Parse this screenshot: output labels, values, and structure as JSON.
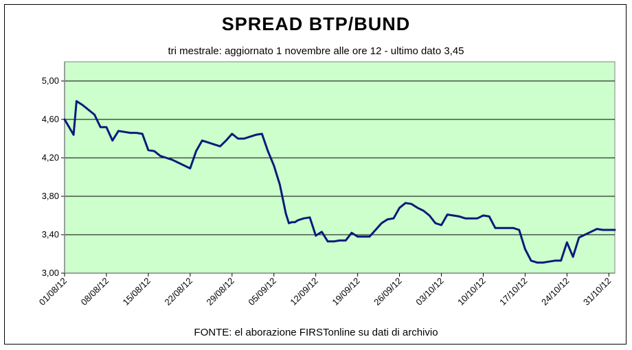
{
  "chart_data": {
    "type": "line",
    "title": "SPREAD  BTP/BUND",
    "subtitle": "tri mestrale: aggiornato 1 novembre alle ore 12 - ultimo dato 3,45",
    "source": "FONTE: el aborazione FIRSTonline su dati di archivio",
    "ylim": [
      3.0,
      5.2
    ],
    "yticks": [
      "3,00",
      "3,40",
      "3,80",
      "4,20",
      "4,60",
      "5,00"
    ],
    "ytick_values": [
      3.0,
      3.4,
      3.8,
      4.2,
      4.6,
      5.0
    ],
    "xlim": [
      0,
      92
    ],
    "xtick_labels": [
      "01/08/12",
      "08/08/12",
      "15/08/12",
      "22/08/12",
      "29/08/12",
      "05/09/12",
      "12/09/12",
      "19/09/12",
      "26/09/12",
      "03/10/12",
      "10/10/12",
      "17/10/12",
      "24/10/12",
      "31/10/12"
    ],
    "xtick_positions": [
      0,
      7,
      14,
      21,
      28,
      35,
      42,
      49,
      56,
      63,
      70,
      77,
      84,
      91
    ],
    "grid": true,
    "colors": {
      "plot_bg": "#ccffcc",
      "line": "#0a1a7a",
      "grid": "#000000"
    },
    "series": [
      {
        "x": [
          0,
          1.5,
          2,
          3,
          4,
          5,
          6,
          7,
          8,
          9,
          10,
          11,
          12,
          13,
          14,
          15,
          16,
          17,
          18,
          19,
          20,
          21,
          22,
          23,
          24,
          25,
          26,
          27,
          28,
          29,
          30,
          31,
          32,
          33,
          34,
          35,
          36,
          37,
          37.5,
          38,
          38.5,
          39,
          40,
          41,
          42,
          43,
          44,
          45,
          46,
          47,
          48,
          49,
          50,
          51,
          52,
          53,
          54,
          55,
          56,
          57,
          58,
          59,
          60,
          61,
          62,
          63,
          64,
          65,
          66,
          67,
          68,
          69,
          70,
          71,
          72,
          73,
          74,
          75,
          76,
          77,
          78,
          79,
          80,
          81,
          82,
          83,
          84,
          85,
          86,
          87,
          88,
          89,
          90,
          91,
          92
        ],
        "y": [
          4.6,
          4.44,
          4.79,
          4.75,
          4.7,
          4.65,
          4.52,
          4.52,
          4.38,
          4.48,
          4.47,
          4.46,
          4.46,
          4.45,
          4.28,
          4.27,
          4.22,
          4.2,
          4.18,
          4.15,
          4.12,
          4.09,
          4.27,
          4.38,
          4.36,
          4.34,
          4.32,
          4.38,
          4.45,
          4.4,
          4.4,
          4.42,
          4.44,
          4.45,
          4.27,
          4.12,
          3.92,
          3.62,
          3.52,
          3.53,
          3.53,
          3.55,
          3.57,
          3.58,
          3.39,
          3.43,
          3.33,
          3.33,
          3.34,
          3.34,
          3.42,
          3.38,
          3.38,
          3.38,
          3.45,
          3.52,
          3.56,
          3.57,
          3.68,
          3.73,
          3.72,
          3.68,
          3.65,
          3.6,
          3.52,
          3.5,
          3.61,
          3.6,
          3.59,
          3.57,
          3.57,
          3.57,
          3.6,
          3.59,
          3.47,
          3.47,
          3.47,
          3.47,
          3.45,
          3.25,
          3.13,
          3.11,
          3.11,
          3.12,
          3.13,
          3.13,
          3.32,
          3.17,
          3.37,
          3.4,
          3.43,
          3.46,
          3.45,
          3.45,
          3.45
        ]
      }
    ]
  }
}
